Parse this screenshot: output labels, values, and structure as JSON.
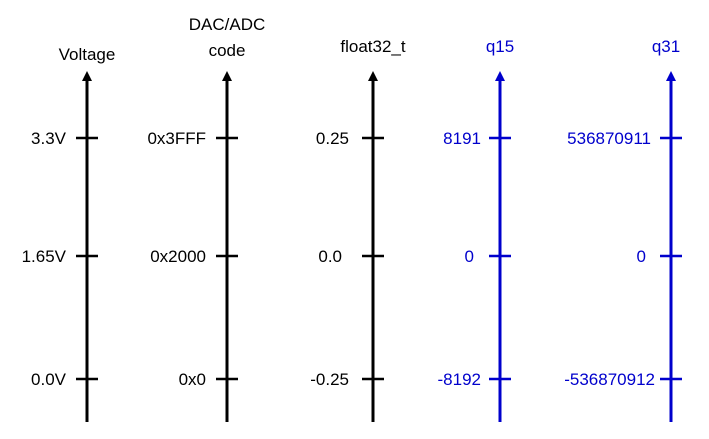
{
  "colors": {
    "black": "#000000",
    "blue": "#0000cc"
  },
  "axes": [
    {
      "title_lines": [
        "Voltage"
      ],
      "ticks": [
        "3.3V",
        "1.65V",
        "0.0V"
      ],
      "color": "black"
    },
    {
      "title_lines": [
        "DAC/ADC",
        "code"
      ],
      "ticks": [
        "0x3FFF",
        "0x2000",
        "0x0"
      ],
      "color": "black"
    },
    {
      "title_lines": [
        "float32_t"
      ],
      "ticks": [
        "0.25",
        "0.0",
        "-0.25"
      ],
      "color": "black"
    },
    {
      "title_lines": [
        "q15"
      ],
      "ticks": [
        "8191",
        "0",
        "-8192"
      ],
      "color": "blue"
    },
    {
      "title_lines": [
        "q31"
      ],
      "ticks": [
        "536870911",
        "0",
        "-536870912"
      ],
      "color": "blue"
    }
  ]
}
